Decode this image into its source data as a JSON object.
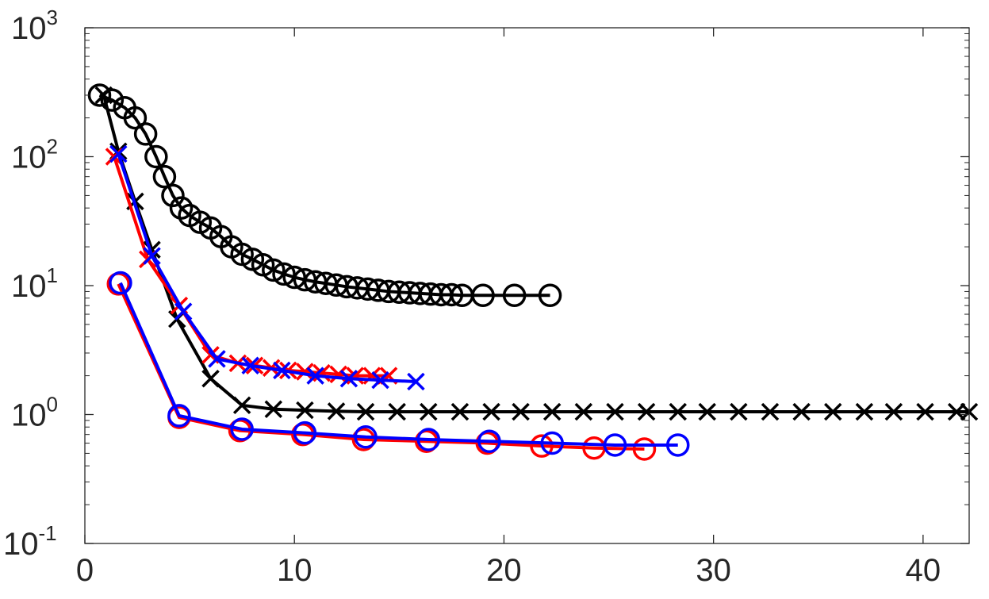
{
  "chart_data": {
    "type": "line",
    "title": "",
    "xlabel": "",
    "ylabel": "",
    "xlim": [
      0,
      42.2
    ],
    "ylim": [
      0.1,
      1000
    ],
    "yscale": "log",
    "grid": false,
    "legend": "none",
    "x_ticks": [
      0,
      10,
      20,
      30,
      40
    ],
    "x_tick_labels": [
      "0",
      "10",
      "20",
      "30",
      "40"
    ],
    "y_ticks": [
      0.1,
      1,
      10,
      100,
      1000
    ],
    "y_tick_labels": [
      {
        "base": "10",
        "exp": "-1"
      },
      {
        "base": "10",
        "exp": "0"
      },
      {
        "base": "10",
        "exp": "1"
      },
      {
        "base": "10",
        "exp": "2"
      },
      {
        "base": "10",
        "exp": "3"
      }
    ],
    "series": [
      {
        "color": "#000000",
        "marker": "o",
        "x": [
          0.7,
          1.3,
          1.9,
          2.4,
          2.9,
          3.4,
          3.8,
          4.2,
          4.6,
          5.0,
          5.5,
          6.0,
          6.5,
          7.0,
          7.5,
          8.0,
          8.5,
          9.0,
          9.5,
          10.0,
          10.5,
          11.0,
          11.5,
          12.0,
          12.5,
          13.0,
          13.5,
          14.0,
          14.5,
          15.0,
          15.5,
          16.0,
          16.5,
          17.0,
          17.5,
          18.0,
          19.0,
          20.5,
          22.2
        ],
        "y": [
          300,
          275,
          240,
          200,
          150,
          100,
          70,
          50,
          40,
          35,
          31,
          28,
          24,
          20,
          17.5,
          16,
          14.5,
          13.2,
          12.3,
          11.6,
          11.1,
          10.7,
          10.4,
          10.1,
          9.8,
          9.6,
          9.4,
          9.2,
          9.0,
          8.9,
          8.8,
          8.7,
          8.6,
          8.5,
          8.5,
          8.4,
          8.4,
          8.4,
          8.4
        ]
      },
      {
        "color": "#000000",
        "marker": "x",
        "x": [
          0.9,
          1.6,
          2.4,
          3.2,
          4.4,
          6.0,
          7.5,
          9.0,
          10.5,
          12.0,
          13.4,
          14.9,
          16.4,
          17.9,
          19.4,
          20.8,
          22.3,
          23.8,
          25.3,
          26.8,
          28.3,
          29.7,
          31.2,
          32.7,
          34.2,
          35.7,
          37.2,
          38.6,
          40.1,
          41.6,
          42.2
        ],
        "y": [
          300,
          110,
          45,
          19,
          5.5,
          1.9,
          1.18,
          1.1,
          1.08,
          1.06,
          1.05,
          1.05,
          1.05,
          1.05,
          1.05,
          1.05,
          1.05,
          1.05,
          1.05,
          1.05,
          1.05,
          1.05,
          1.05,
          1.05,
          1.05,
          1.05,
          1.05,
          1.05,
          1.05,
          1.05,
          1.05
        ]
      },
      {
        "color": "#ff0000",
        "marker": "x",
        "x": [
          1.4,
          3.0,
          4.5,
          6.0,
          7.3,
          8.1,
          8.9,
          9.7,
          10.5,
          11.3,
          12.1,
          12.9,
          13.7,
          14.5
        ],
        "y": [
          100,
          16,
          7,
          2.9,
          2.5,
          2.4,
          2.3,
          2.2,
          2.15,
          2.1,
          2.05,
          2.0,
          2.0,
          2.0
        ]
      },
      {
        "color": "#0000ff",
        "marker": "x",
        "x": [
          1.6,
          3.2,
          4.7,
          6.3,
          7.9,
          9.4,
          11.0,
          12.6,
          14.1,
          15.8
        ],
        "y": [
          105,
          17,
          6.3,
          2.7,
          2.4,
          2.2,
          2.0,
          1.9,
          1.85,
          1.8
        ]
      },
      {
        "color": "#ff0000",
        "marker": "o",
        "x": [
          1.6,
          4.5,
          7.4,
          10.4,
          13.3,
          16.3,
          19.2,
          21.8,
          24.3,
          26.7
        ],
        "y": [
          10.3,
          0.95,
          0.75,
          0.7,
          0.64,
          0.62,
          0.6,
          0.57,
          0.55,
          0.54
        ]
      },
      {
        "color": "#0000ff",
        "marker": "o",
        "x": [
          1.7,
          4.5,
          7.5,
          10.5,
          13.4,
          16.4,
          19.3,
          22.3,
          25.3,
          28.3
        ],
        "y": [
          10.5,
          0.98,
          0.77,
          0.72,
          0.67,
          0.64,
          0.62,
          0.6,
          0.58,
          0.58
        ]
      }
    ]
  }
}
